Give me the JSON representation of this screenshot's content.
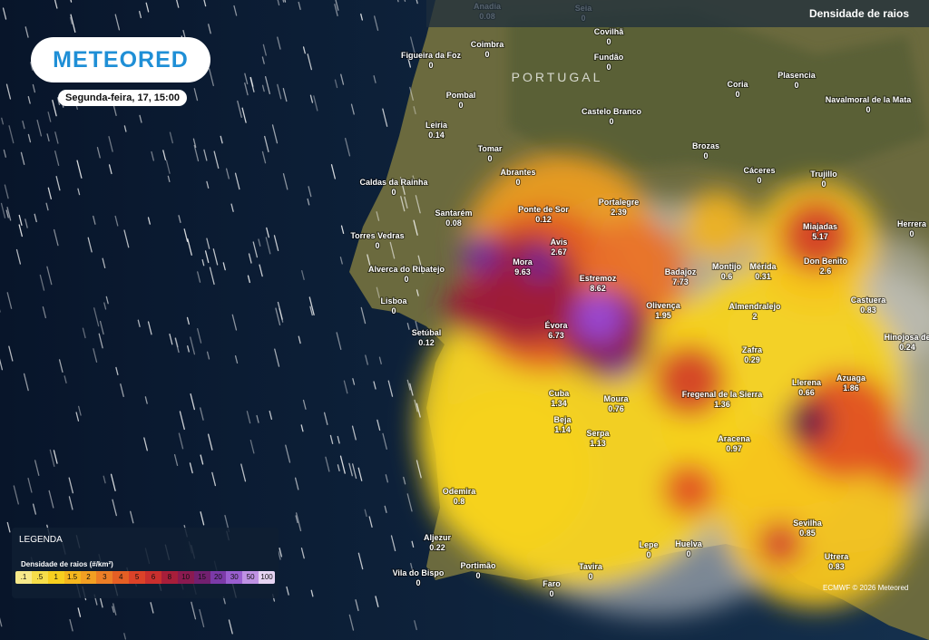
{
  "header": {
    "logo": "METEORED",
    "date": "Segunda-feira, 17, 15:00",
    "layer": "Densidade de raios"
  },
  "map": {
    "country": "PORTUGAL",
    "cities": [
      {
        "name": "Anadia",
        "value": 0.08
      },
      {
        "name": "Seia",
        "value": 0
      },
      {
        "name": "Coimbra",
        "value": 0
      },
      {
        "name": "Covilhã",
        "value": 0
      },
      {
        "name": "Figueira da Foz",
        "value": 0
      },
      {
        "name": "Fundão",
        "value": 0
      },
      {
        "name": "Pombal",
        "value": 0
      },
      {
        "name": "Coria",
        "value": 0
      },
      {
        "name": "Plasencia",
        "value": 0
      },
      {
        "name": "Navalmoral de la Mata",
        "value": 0
      },
      {
        "name": "Leiria",
        "value": 0.14
      },
      {
        "name": "Castelo Branco",
        "value": 0
      },
      {
        "name": "Tomar",
        "value": 0
      },
      {
        "name": "Brozas",
        "value": 0
      },
      {
        "name": "Abrantes",
        "value": 0
      },
      {
        "name": "Cáceres",
        "value": 0
      },
      {
        "name": "Trujillo",
        "value": 0
      },
      {
        "name": "Caldas da Rainha",
        "value": 0
      },
      {
        "name": "Santarém",
        "value": 0.08
      },
      {
        "name": "Ponte de Sor",
        "value": 0.12
      },
      {
        "name": "Portalegre",
        "value": 2.39
      },
      {
        "name": "Herrera",
        "value": 0
      },
      {
        "name": "Torres Vedras",
        "value": 0
      },
      {
        "name": "Avis",
        "value": 2.67
      },
      {
        "name": "Miajadas",
        "value": 5.17
      },
      {
        "name": "Mora",
        "value": 9.63
      },
      {
        "name": "Alverca do Ribatejo",
        "value": 0
      },
      {
        "name": "Badajoz",
        "value": 7.73
      },
      {
        "name": "Montijo",
        "value": 0.6
      },
      {
        "name": "Mérida",
        "value": 0.31
      },
      {
        "name": "Don Benito",
        "value": 2.6
      },
      {
        "name": "Estremoz",
        "value": 8.62
      },
      {
        "name": "Lisboa",
        "value": 0
      },
      {
        "name": "Castuera",
        "value": 0.83
      },
      {
        "name": "Olivença",
        "value": 1.95
      },
      {
        "name": "Almendralejo",
        "value": 2
      },
      {
        "name": "Évora",
        "value": 6.73
      },
      {
        "name": "Setúbal",
        "value": 0.12
      },
      {
        "name": "Hinojosa de",
        "value": 0.24
      },
      {
        "name": "Zafra",
        "value": 0.29
      },
      {
        "name": "Azuaga",
        "value": 1.86
      },
      {
        "name": "Llerena",
        "value": 0.66
      },
      {
        "name": "Cuba",
        "value": 1.34
      },
      {
        "name": "Moura",
        "value": 0.76
      },
      {
        "name": "Fregenal de la Sierra",
        "value": 1.36
      },
      {
        "name": "Beja",
        "value": 1.14
      },
      {
        "name": "Serpa",
        "value": 1.13
      },
      {
        "name": "Aracena",
        "value": 0.97
      },
      {
        "name": "Odemira",
        "value": 0.8
      },
      {
        "name": "Sevilha",
        "value": 0.85
      },
      {
        "name": "Aljezur",
        "value": 0.22
      },
      {
        "name": "Lepe",
        "value": 0
      },
      {
        "name": "Huelva",
        "value": 0
      },
      {
        "name": "Portimão",
        "value": 0
      },
      {
        "name": "Tavira",
        "value": 0
      },
      {
        "name": "Utrera",
        "value": 0.83
      },
      {
        "name": "Vila do Bispo",
        "value": 0
      },
      {
        "name": "Faro",
        "value": 0
      }
    ]
  },
  "legend": {
    "title": "LEGENDA",
    "subtitle": "Densidade de raios (#/km²)",
    "ticks": [
      ".1",
      ".5",
      "1",
      "1.5",
      "2",
      "3",
      "4",
      "5",
      "6",
      "8",
      "10",
      "15",
      "20",
      "30",
      "50",
      "100"
    ]
  },
  "copyright": "ECMWF © 2026 Meteored"
}
